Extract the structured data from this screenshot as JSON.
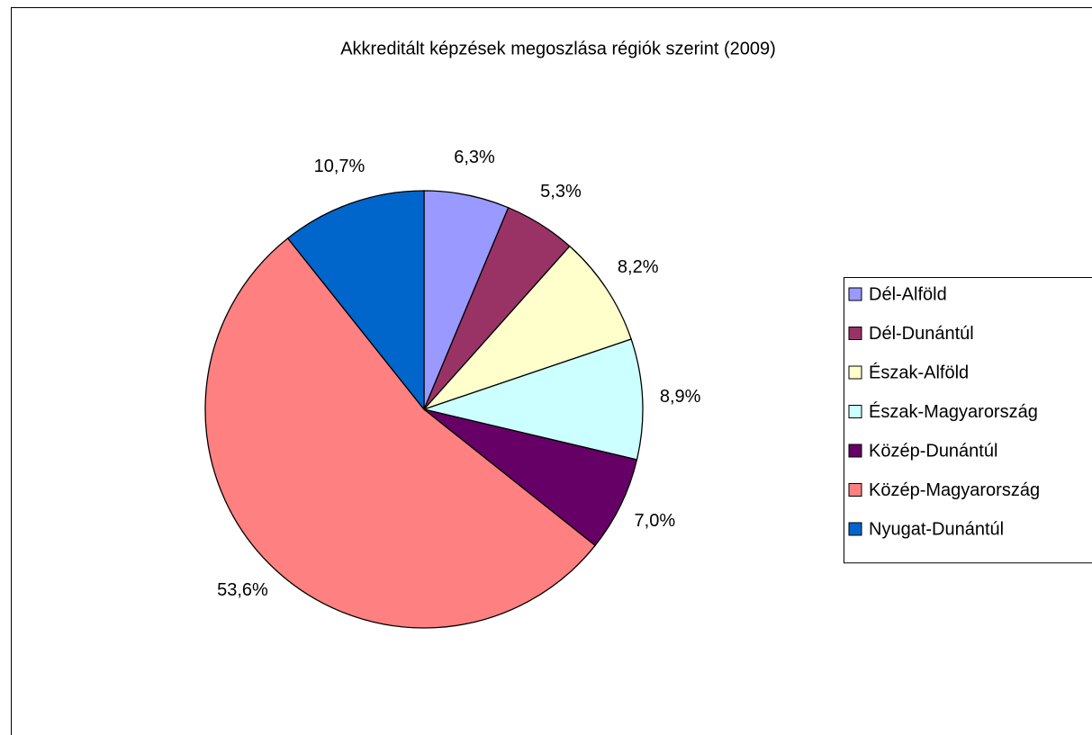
{
  "chart_data": {
    "type": "pie",
    "title": "Akkreditált képzések megoszlása régiók szerint (2009)",
    "categories": [
      "Dél-Alföld",
      "Dél-Dunántúl",
      "Észak-Alföld",
      "Észak-Magyarország",
      "Közép-Dunántúl",
      "Közép-Magyarország",
      "Nyugat-Dunántúl"
    ],
    "values": [
      6.3,
      5.3,
      8.2,
      8.9,
      7.0,
      53.6,
      10.7
    ],
    "value_labels": [
      "6,3%",
      "5,3%",
      "8,2%",
      "8,9%",
      "7,0%",
      "53,6%",
      "10,7%"
    ],
    "colors": [
      "#9999ff",
      "#993366",
      "#ffffcc",
      "#ccffff",
      "#660066",
      "#ff8080",
      "#0066cc"
    ],
    "legend": "right"
  }
}
